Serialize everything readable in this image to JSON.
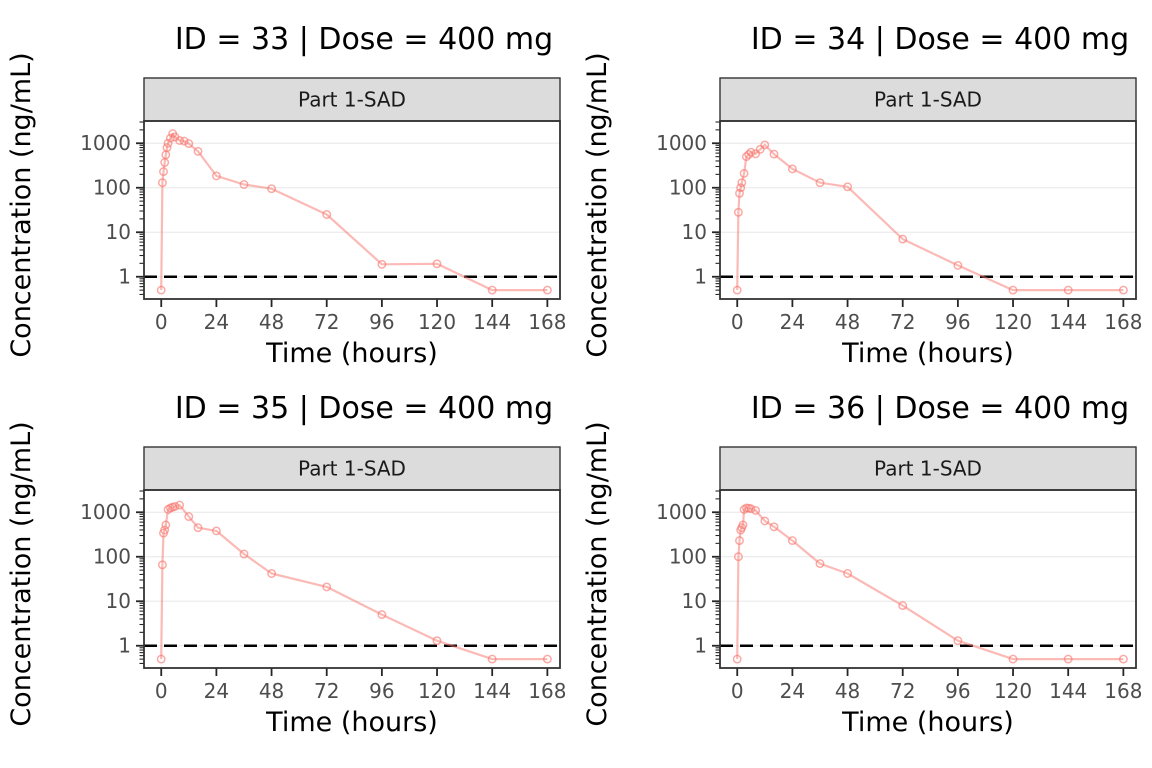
{
  "figure": {
    "kind": "faceted-concentration-time-grid",
    "rows": 2,
    "cols": 2,
    "colors": {
      "series_stroke": "#F8766D",
      "lloq_line": "#000000",
      "strip_bg": "#DCDCDC",
      "strip_border": "#333333",
      "panel_border": "#333333",
      "gridline": "#EBEBEB",
      "tick_mark": "#262626",
      "tick_label": "#4D4D4D",
      "text": "#000000"
    }
  },
  "chart_data": [
    {
      "type": "line",
      "title": "ID = 33 | Dose = 400 mg",
      "facet_label": "Part 1-SAD",
      "xlabel": "Time (hours)",
      "ylabel": "Concentration (ng/mL)",
      "y_scale": "log10",
      "x_ticks": [
        0,
        24,
        48,
        72,
        96,
        120,
        144,
        168
      ],
      "y_ticks": [
        1,
        10,
        100,
        1000
      ],
      "xlim": [
        -7.5,
        173.5
      ],
      "ylim": [
        0.316,
        3162
      ],
      "lloq": 1,
      "grid": "horizontal-major",
      "legend": "none",
      "series": [
        {
          "name": "ID 33 concentration",
          "x": [
            0,
            0.5,
            1,
            1.5,
            2,
            2.5,
            3,
            4,
            5,
            6,
            8,
            10,
            12,
            16,
            24,
            36,
            48,
            72,
            96,
            120,
            144,
            168
          ],
          "y": [
            0.5,
            130,
            230,
            370,
            550,
            800,
            1000,
            1300,
            1650,
            1380,
            1150,
            1120,
            980,
            660,
            185,
            118,
            95,
            25,
            1.9,
            1.95,
            0.5,
            0.5
          ]
        }
      ]
    },
    {
      "type": "line",
      "title": "ID = 34 | Dose = 400 mg",
      "facet_label": "Part 1-SAD",
      "xlabel": "Time (hours)",
      "ylabel": "Concentration (ng/mL)",
      "y_scale": "log10",
      "x_ticks": [
        0,
        24,
        48,
        72,
        96,
        120,
        144,
        168
      ],
      "y_ticks": [
        1,
        10,
        100,
        1000
      ],
      "xlim": [
        -7.5,
        173.5
      ],
      "ylim": [
        0.316,
        3162
      ],
      "lloq": 1,
      "grid": "horizontal-major",
      "legend": "none",
      "series": [
        {
          "name": "ID 34 concentration",
          "x": [
            0,
            0.5,
            1,
            1.5,
            2,
            3,
            4,
            5,
            6,
            8,
            10,
            12,
            16,
            24,
            36,
            48,
            72,
            96,
            120,
            144,
            168
          ],
          "y": [
            0.5,
            28,
            75,
            100,
            130,
            210,
            500,
            560,
            630,
            580,
            730,
            920,
            570,
            265,
            130,
            105,
            7,
            1.8,
            0.5,
            0.5,
            0.5
          ]
        }
      ]
    },
    {
      "type": "line",
      "title": "ID = 35 | Dose = 400 mg",
      "facet_label": "Part 1-SAD",
      "xlabel": "Time (hours)",
      "ylabel": "Concentration (ng/mL)",
      "y_scale": "log10",
      "x_ticks": [
        0,
        24,
        48,
        72,
        96,
        120,
        144,
        168
      ],
      "y_ticks": [
        1,
        10,
        100,
        1000
      ],
      "xlim": [
        -7.5,
        173.5
      ],
      "ylim": [
        0.316,
        3162
      ],
      "lloq": 1,
      "grid": "horizontal-major",
      "legend": "none",
      "series": [
        {
          "name": "ID 35 concentration",
          "x": [
            0,
            0.5,
            1,
            1.5,
            2,
            3,
            4,
            5,
            6,
            8,
            12,
            16,
            24,
            36,
            48,
            72,
            96,
            120,
            144,
            168
          ],
          "y": [
            0.5,
            66,
            340,
            400,
            520,
            1150,
            1250,
            1300,
            1350,
            1450,
            800,
            450,
            380,
            115,
            42,
            21,
            5,
            1.3,
            0.5,
            0.5
          ]
        }
      ]
    },
    {
      "type": "line",
      "title": "ID = 36 | Dose = 400 mg",
      "facet_label": "Part 1-SAD",
      "xlabel": "Time (hours)",
      "ylabel": "Concentration (ng/mL)",
      "y_scale": "log10",
      "x_ticks": [
        0,
        24,
        48,
        72,
        96,
        120,
        144,
        168
      ],
      "y_ticks": [
        1,
        10,
        100,
        1000
      ],
      "xlim": [
        -7.5,
        173.5
      ],
      "ylim": [
        0.316,
        3162
      ],
      "lloq": 1,
      "grid": "horizontal-major",
      "legend": "none",
      "series": [
        {
          "name": "ID 36 concentration",
          "x": [
            0,
            0.5,
            1,
            1.5,
            2,
            2.5,
            3,
            4,
            5,
            6,
            8,
            12,
            16,
            24,
            36,
            48,
            72,
            96,
            120,
            144,
            168
          ],
          "y": [
            0.5,
            100,
            230,
            400,
            450,
            520,
            1150,
            1250,
            1230,
            1200,
            1100,
            640,
            470,
            230,
            70,
            42,
            8,
            1.3,
            0.5,
            0.5,
            0.5
          ]
        }
      ]
    }
  ]
}
